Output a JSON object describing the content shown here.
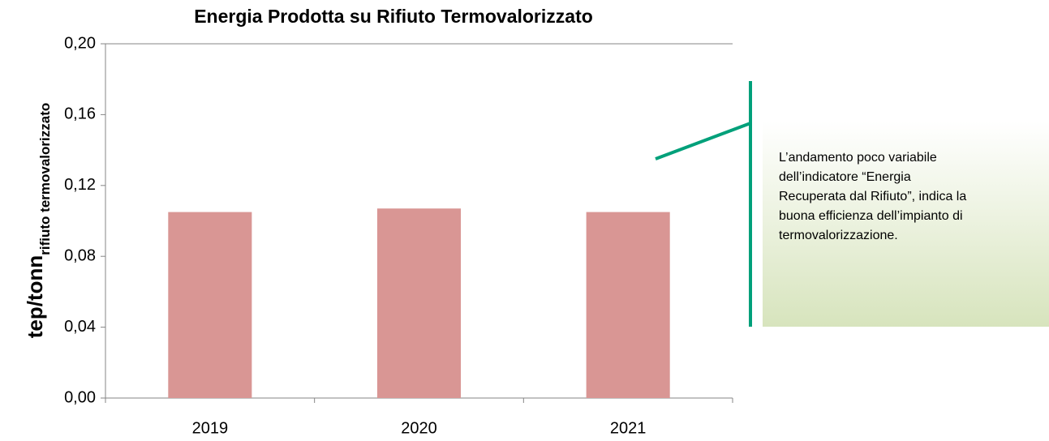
{
  "chart_data": {
    "type": "bar",
    "title": "Energia Prodotta su Rifiuto Termovalorizzato",
    "y_label": "tep/tonn",
    "y_label_subscript": "rifiuto termovalorizzato",
    "categories": [
      "2019",
      "2020",
      "2021"
    ],
    "values": [
      0.105,
      0.107,
      0.105
    ],
    "color": "#d99694",
    "ylim": [
      0,
      0.2
    ],
    "yticks": [
      {
        "value": 0,
        "label": "0,00"
      },
      {
        "value": 0.04,
        "label": "0,04"
      },
      {
        "value": 0.08,
        "label": "0,08"
      },
      {
        "value": 0.12,
        "label": "0,12"
      },
      {
        "value": 0.16,
        "label": "0,16"
      },
      {
        "value": 0.2,
        "label": "0,20"
      }
    ],
    "grid": false,
    "annotation": [
      "L’andamento poco variabile",
      "dell’indicatore “Energia",
      "Recuperata dal Rifiuto”, indica la",
      "buona efficienza dell’impianto di",
      "termovalorizzazione."
    ]
  }
}
